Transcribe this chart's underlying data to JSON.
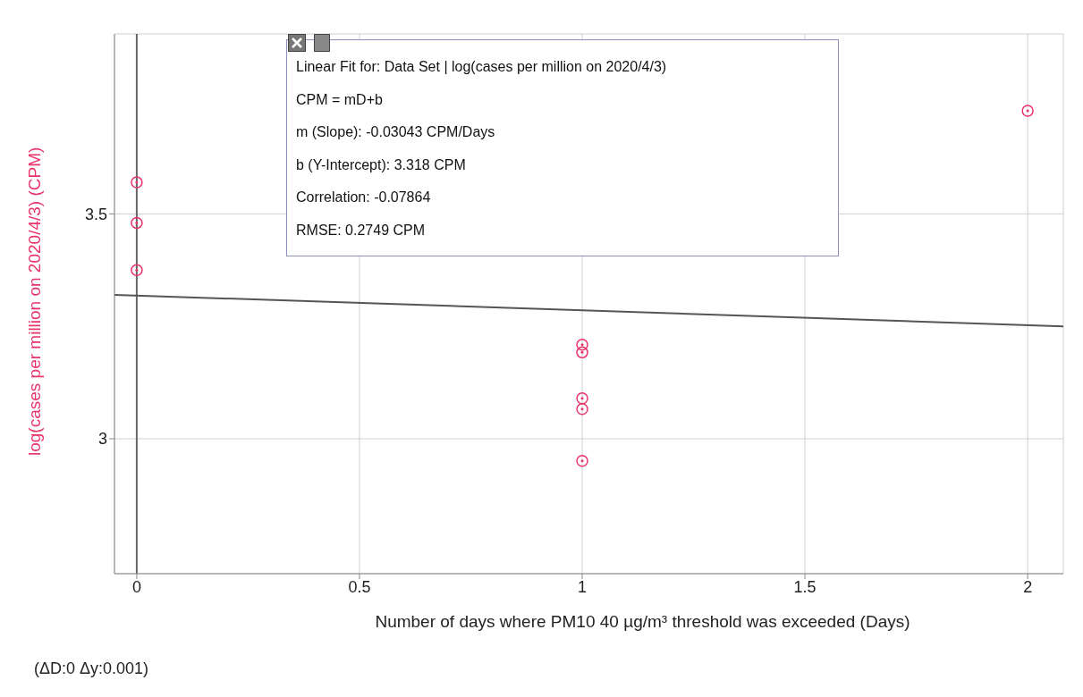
{
  "chart_data": {
    "type": "scatter",
    "xlabel": "Number of days where PM10 40 µg/m³ threshold was exceeded (Days)",
    "ylabel": "log(cases per million on 2020/4/3) (CPM)",
    "series": [
      {
        "color": "#e8336b",
        "x": [
          0,
          0,
          0,
          1,
          1,
          1,
          1,
          1,
          2
        ],
        "values": [
          3.57,
          3.48,
          3.375,
          3.209,
          3.192,
          3.09,
          3.066,
          2.951,
          3.729
        ]
      },
      {
        "type": "line",
        "color": "#555555",
        "marker": "none",
        "x": [
          -0.05,
          2.08
        ],
        "values": [
          3.32,
          3.25
        ]
      }
    ],
    "xlim": [
      -0.05,
      2.08
    ],
    "xticks": [
      0,
      0.5,
      1,
      1.5,
      2
    ],
    "ylim": [
      2.7,
      3.9
    ],
    "yticks": [
      3,
      3.5
    ],
    "grid": true,
    "marker": "circle",
    "ref_lines": [
      {
        "axis": "x",
        "value": 0,
        "color": "#666666"
      }
    ],
    "annotations": [
      "Linear Fit for: Data Set | log(cases per million on 2020/4/3)",
      "CPM = mD+b",
      "m (Slope): -0.03043 CPM/Days",
      "b (Y-Intercept): 3.318 CPM",
      "Correlation: -0.07864",
      "RMSE: 0.2749 CPM",
      "(ΔD:0 Δy:0.001)"
    ]
  }
}
